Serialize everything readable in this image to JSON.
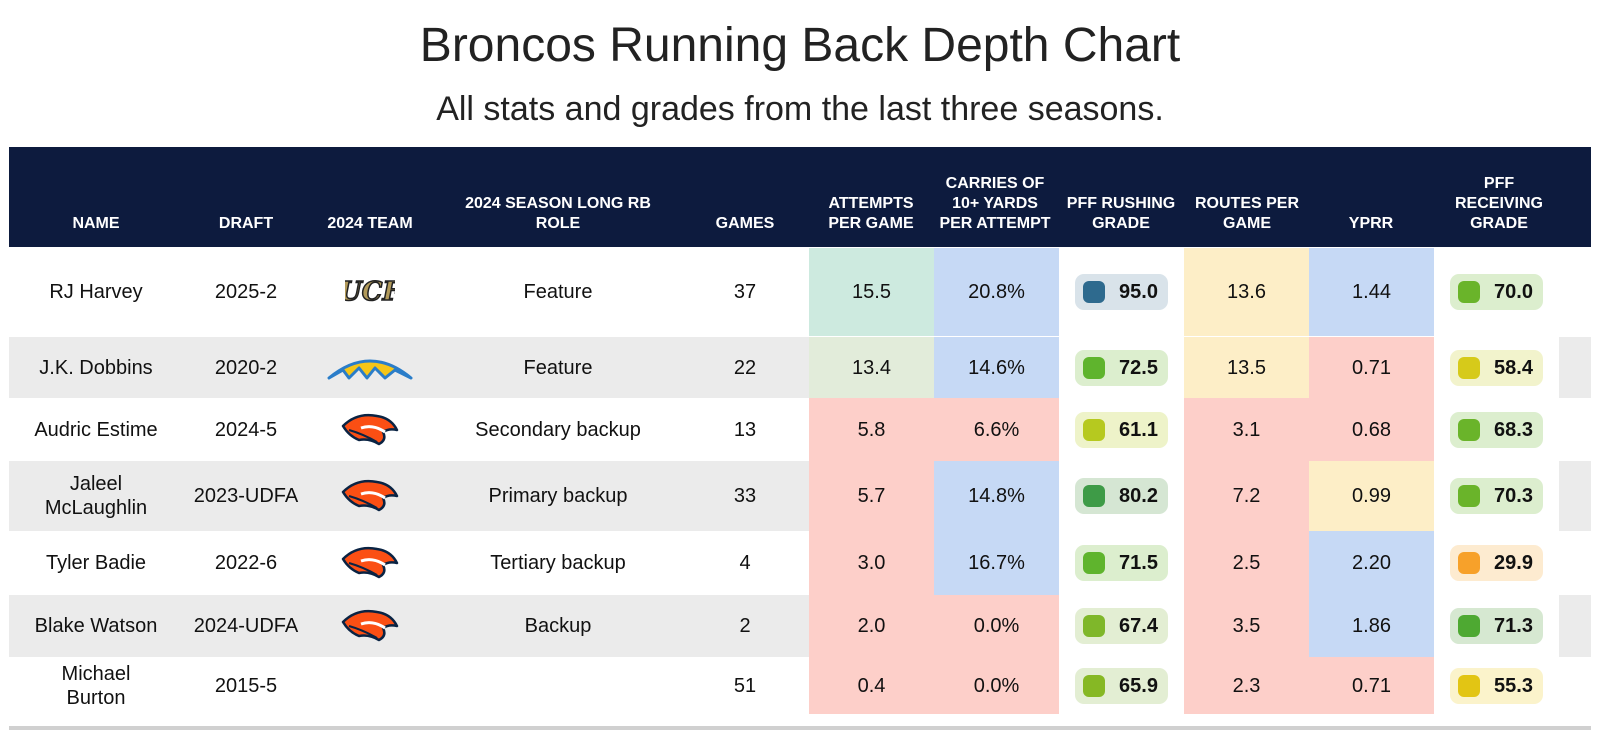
{
  "title": "Broncos Running Back Depth Chart",
  "subtitle": "All stats and grades from the last three seasons.",
  "columns": [
    "NAME",
    "DRAFT",
    "2024 TEAM",
    "2024 SEASON LONG RB ROLE",
    "GAMES",
    "ATTEMPTS PER GAME",
    "CARRIES OF 10+ YARDS PER ATTEMPT",
    "PFF RUSHING GRADE",
    "ROUTES PER GAME",
    "YPRR",
    "PFF RECEIVING GRADE"
  ],
  "colors": {
    "header_bg": "#0d1b3e",
    "red": "#fdcfc9",
    "blue": "#c6d9f5",
    "yellow": "#fdeec7",
    "green_light": "#e2ecda",
    "teal": "#cdeadf",
    "grade_dark_blue": "#2e6a8e",
    "grade_green": "#5fb42d",
    "grade_dark_green": "#3e9b47",
    "grade_yellow_green": "#b6c91f",
    "grade_yellow": "#d6ca1a",
    "grade_orange": "#f7a12a"
  },
  "chart_data": {
    "type": "table",
    "title": "Broncos Running Back Depth Chart",
    "subtitle": "All stats and grades from the last three seasons.",
    "rows": [
      {
        "name": "RJ Harvey",
        "draft": "2025-2",
        "team": "ucf-logo",
        "role": "Feature",
        "games": "37",
        "att": "15.5",
        "carries10": "20.8%",
        "rush_grade": "95.0",
        "routes": "13.6",
        "yprr": "1.44",
        "rec_grade": "70.0"
      },
      {
        "name": "J.K. Dobbins",
        "draft": "2020-2",
        "team": "chargers-logo",
        "role": "Feature",
        "games": "22",
        "att": "13.4",
        "carries10": "14.6%",
        "rush_grade": "72.5",
        "routes": "13.5",
        "yprr": "0.71",
        "rec_grade": "58.4"
      },
      {
        "name": "Audric Estime",
        "draft": "2024-5",
        "team": "broncos-logo",
        "role": "Secondary backup",
        "games": "13",
        "att": "5.8",
        "carries10": "6.6%",
        "rush_grade": "61.1",
        "routes": "3.1",
        "yprr": "0.68",
        "rec_grade": "68.3"
      },
      {
        "name": "Jaleel McLaughlin",
        "draft": "2023-UDFA",
        "team": "broncos-logo",
        "role": "Primary backup",
        "games": "33",
        "att": "5.7",
        "carries10": "14.8%",
        "rush_grade": "80.2",
        "routes": "7.2",
        "yprr": "0.99",
        "rec_grade": "70.3"
      },
      {
        "name": "Tyler Badie",
        "draft": "2022-6",
        "team": "broncos-logo",
        "role": "Tertiary backup",
        "games": "4",
        "att": "3.0",
        "carries10": "16.7%",
        "rush_grade": "71.5",
        "routes": "2.5",
        "yprr": "2.20",
        "rec_grade": "29.9"
      },
      {
        "name": "Blake Watson",
        "draft": "2024-UDFA",
        "team": "broncos-logo",
        "role": "Backup",
        "games": "2",
        "att": "2.0",
        "carries10": "0.0%",
        "rush_grade": "67.4",
        "routes": "3.5",
        "yprr": "1.86",
        "rec_grade": "71.3"
      },
      {
        "name": "Michael Burton",
        "draft": "2015-5",
        "team": "",
        "role": "",
        "games": "51",
        "att": "0.4",
        "carries10": "0.0%",
        "rush_grade": "65.9",
        "routes": "2.3",
        "yprr": "0.71",
        "rec_grade": "55.3"
      }
    ]
  }
}
